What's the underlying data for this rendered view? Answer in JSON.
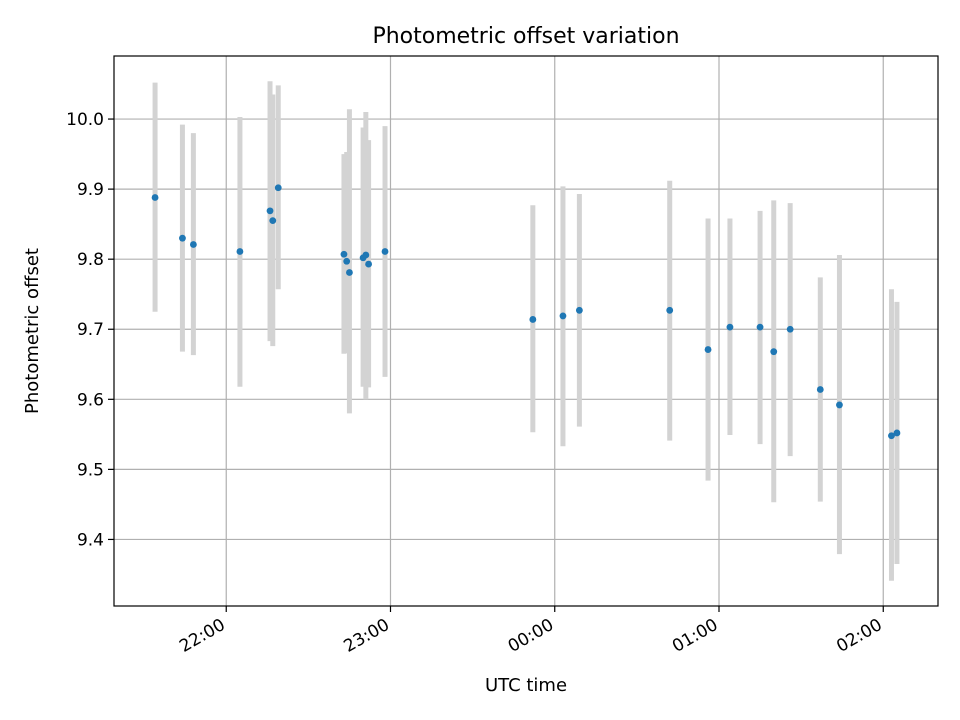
{
  "chart_data": {
    "type": "scatter",
    "title": "Photometric offset variation",
    "xlabel": "UTC time",
    "ylabel": "Photometric offset",
    "x_unit": "HH:MM UTC",
    "xlim": [
      "21:19",
      "02:20"
    ],
    "ylim": [
      9.305,
      10.09
    ],
    "grid": true,
    "x_ticks": [
      "22:00",
      "23:00",
      "00:00",
      "01:00",
      "02:00"
    ],
    "y_ticks": [
      9.4,
      9.5,
      9.6,
      9.7,
      9.8,
      9.9,
      10.0
    ],
    "y_tick_labels": [
      "9.4",
      "9.5",
      "9.6",
      "9.7",
      "9.8",
      "9.9",
      "10.0"
    ],
    "colors": {
      "point": "#1f77b4",
      "errorbar": "#d3d3d3",
      "grid": "#b0b0b0"
    },
    "points": [
      {
        "t": "21:34",
        "y": 9.888,
        "lo": 9.725,
        "hi": 10.052
      },
      {
        "t": "21:44",
        "y": 9.83,
        "lo": 9.668,
        "hi": 9.992
      },
      {
        "t": "21:48",
        "y": 9.821,
        "lo": 9.663,
        "hi": 9.98
      },
      {
        "t": "22:05",
        "y": 9.811,
        "lo": 9.618,
        "hi": 10.003
      },
      {
        "t": "22:16",
        "y": 9.869,
        "lo": 9.683,
        "hi": 10.054
      },
      {
        "t": "22:17",
        "y": 9.855,
        "lo": 9.676,
        "hi": 10.035
      },
      {
        "t": "22:19",
        "y": 9.902,
        "lo": 9.757,
        "hi": 10.048
      },
      {
        "t": "22:43",
        "y": 9.807,
        "lo": 9.665,
        "hi": 9.95
      },
      {
        "t": "22:44",
        "y": 9.797,
        "lo": 9.666,
        "hi": 9.953
      },
      {
        "t": "22:45",
        "y": 9.781,
        "lo": 9.58,
        "hi": 10.014
      },
      {
        "t": "22:50",
        "y": 9.802,
        "lo": 9.618,
        "hi": 9.988
      },
      {
        "t": "22:51",
        "y": 9.806,
        "lo": 9.6,
        "hi": 10.01
      },
      {
        "t": "22:52",
        "y": 9.793,
        "lo": 9.617,
        "hi": 9.97
      },
      {
        "t": "22:58",
        "y": 9.811,
        "lo": 9.632,
        "hi": 9.99
      },
      {
        "t": "23:52",
        "y": 9.714,
        "lo": 9.553,
        "hi": 9.877
      },
      {
        "t": "00:03",
        "y": 9.719,
        "lo": 9.533,
        "hi": 9.904
      },
      {
        "t": "00:09",
        "y": 9.727,
        "lo": 9.561,
        "hi": 9.893
      },
      {
        "t": "00:42",
        "y": 9.727,
        "lo": 9.541,
        "hi": 9.912
      },
      {
        "t": "00:56",
        "y": 9.671,
        "lo": 9.484,
        "hi": 9.858
      },
      {
        "t": "01:04",
        "y": 9.703,
        "lo": 9.549,
        "hi": 9.858
      },
      {
        "t": "01:15",
        "y": 9.703,
        "lo": 9.536,
        "hi": 9.869
      },
      {
        "t": "01:20",
        "y": 9.668,
        "lo": 9.453,
        "hi": 9.884
      },
      {
        "t": "01:26",
        "y": 9.7,
        "lo": 9.519,
        "hi": 9.88
      },
      {
        "t": "01:37",
        "y": 9.614,
        "lo": 9.454,
        "hi": 9.774
      },
      {
        "t": "01:44",
        "y": 9.592,
        "lo": 9.379,
        "hi": 9.806
      },
      {
        "t": "02:03",
        "y": 9.548,
        "lo": 9.341,
        "hi": 9.757
      },
      {
        "t": "02:05",
        "y": 9.552,
        "lo": 9.365,
        "hi": 9.739
      }
    ]
  }
}
